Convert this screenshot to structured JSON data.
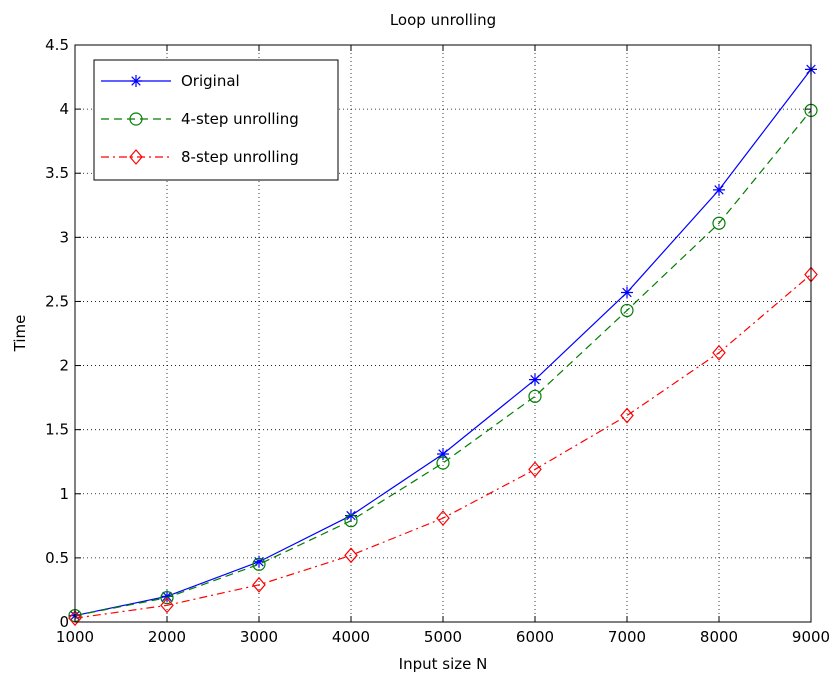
{
  "chart_data": {
    "type": "line",
    "title": "Loop unrolling",
    "xlabel": "Input size N",
    "ylabel": "Time",
    "x": [
      1000,
      2000,
      3000,
      4000,
      5000,
      6000,
      7000,
      8000,
      9000
    ],
    "xlim": [
      1000,
      9000
    ],
    "ylim": [
      0,
      4.5
    ],
    "xticks": [
      "1000",
      "2000",
      "3000",
      "4000",
      "5000",
      "6000",
      "7000",
      "8000",
      "9000"
    ],
    "yticks": [
      "0",
      "0.5",
      "1",
      "1.5",
      "2",
      "2.5",
      "3",
      "3.5",
      "4",
      "4.5"
    ],
    "grid": true,
    "legend_position": "top-left",
    "series": [
      {
        "name": "Original",
        "color": "#0000ff",
        "line_style": "solid",
        "marker": "asterisk",
        "values": [
          0.05,
          0.2,
          0.47,
          0.83,
          1.31,
          1.89,
          2.57,
          3.37,
          4.31
        ]
      },
      {
        "name": "4-step unrolling",
        "color": "#007f00",
        "line_style": "dashed",
        "marker": "circle",
        "values": [
          0.05,
          0.19,
          0.45,
          0.79,
          1.24,
          1.76,
          2.43,
          3.11,
          3.99
        ]
      },
      {
        "name": "8-step unrolling",
        "color": "#ff0000",
        "line_style": "dash-dot",
        "marker": "diamond",
        "values": [
          0.03,
          0.13,
          0.29,
          0.52,
          0.81,
          1.19,
          1.61,
          2.1,
          2.71
        ]
      }
    ]
  }
}
